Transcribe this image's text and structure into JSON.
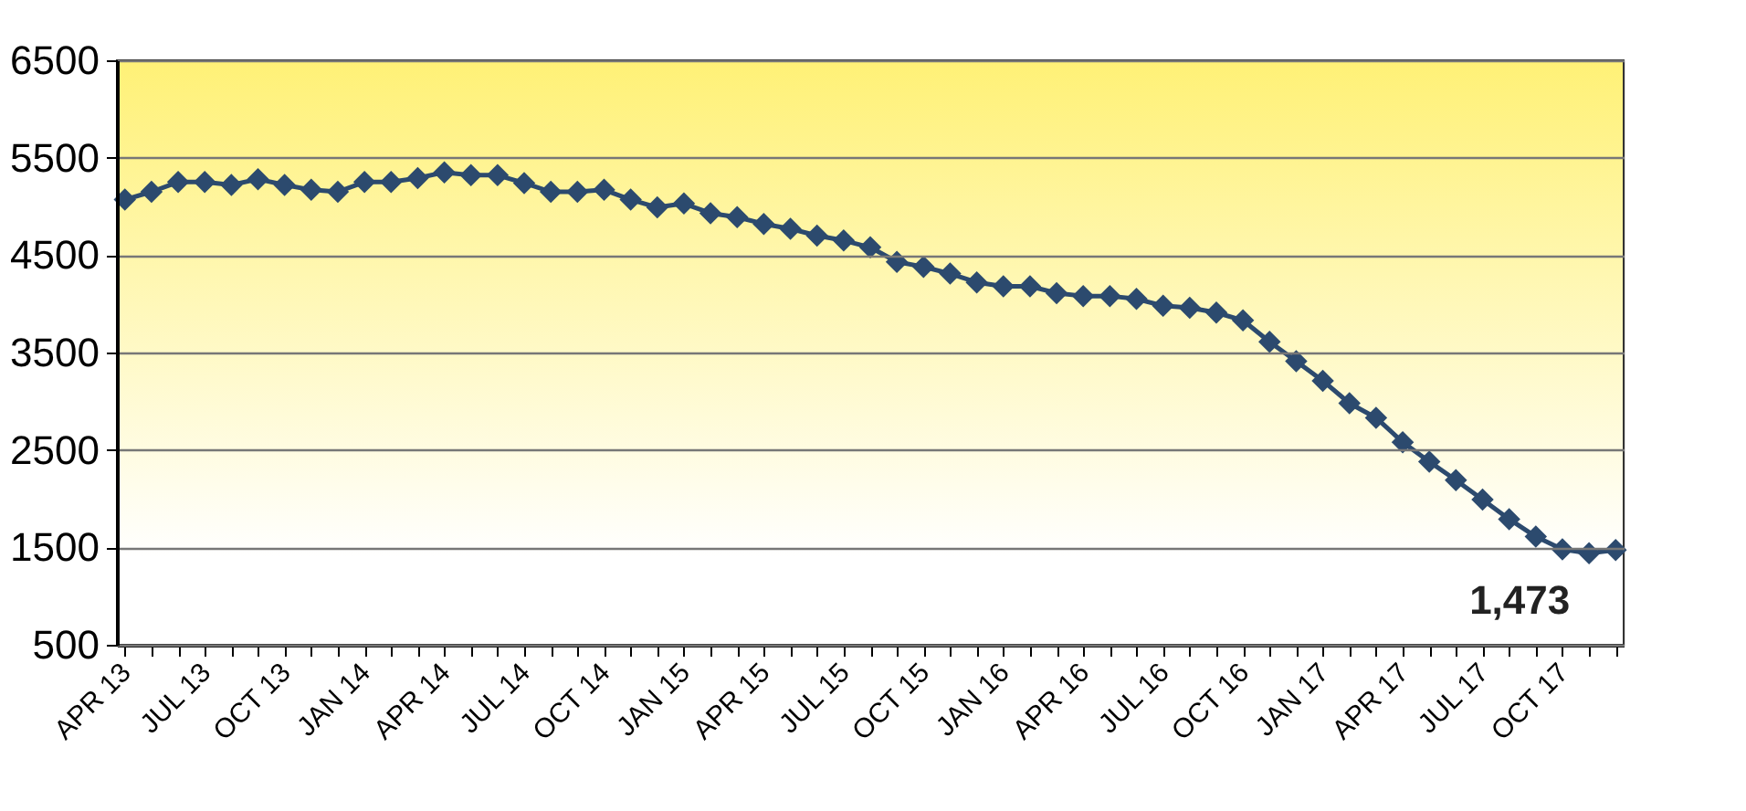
{
  "chart_data": {
    "type": "line",
    "categories": [
      "APR 13",
      null,
      null,
      "JUL 13",
      null,
      null,
      "OCT 13",
      null,
      null,
      "JAN 14",
      null,
      null,
      "APR 14",
      null,
      null,
      "JUL 14",
      null,
      null,
      "OCT 14",
      null,
      null,
      "JAN 15",
      null,
      null,
      "APR 15",
      null,
      null,
      "JUL 15",
      null,
      null,
      "OCT 15",
      null,
      null,
      "JAN 16",
      null,
      null,
      "APR 16",
      null,
      null,
      "JUL 16",
      null,
      null,
      "OCT 16",
      null,
      null,
      "JAN 17",
      null,
      null,
      "APR 17",
      null,
      null,
      "JUL 17",
      null,
      null,
      "OCT 17",
      null,
      null
    ],
    "series": [
      {
        "color": "#2c4a6e",
        "values": [
          5070,
          5150,
          5250,
          5250,
          5220,
          5280,
          5220,
          5170,
          5150,
          5250,
          5250,
          5290,
          5350,
          5320,
          5320,
          5240,
          5150,
          5150,
          5170,
          5070,
          4990,
          5030,
          4930,
          4890,
          4820,
          4770,
          4700,
          4650,
          4580,
          4430,
          4380,
          4310,
          4220,
          4180,
          4180,
          4110,
          4080,
          4080,
          4050,
          3980,
          3960,
          3910,
          3830,
          3610,
          3410,
          3210,
          2980,
          2830,
          2580,
          2380,
          2190,
          1990,
          1790,
          1610,
          1480,
          1440,
          1473
        ],
        "value_labels": [
          null,
          null,
          null,
          null,
          null,
          null,
          null,
          null,
          null,
          null,
          null,
          null,
          null,
          null,
          null,
          null,
          null,
          null,
          null,
          null,
          null,
          null,
          null,
          null,
          null,
          null,
          null,
          null,
          null,
          null,
          null,
          null,
          null,
          null,
          null,
          null,
          null,
          null,
          null,
          null,
          null,
          null,
          null,
          null,
          null,
          null,
          null,
          null,
          null,
          null,
          null,
          null,
          null,
          null,
          null,
          null,
          "1,473"
        ]
      }
    ],
    "ylim": [
      500,
      6500
    ],
    "yticks": [
      500,
      1500,
      2500,
      3500,
      4500,
      5500,
      6500
    ],
    "grid": "y",
    "marker": "diamond",
    "line_style": "solid"
  }
}
